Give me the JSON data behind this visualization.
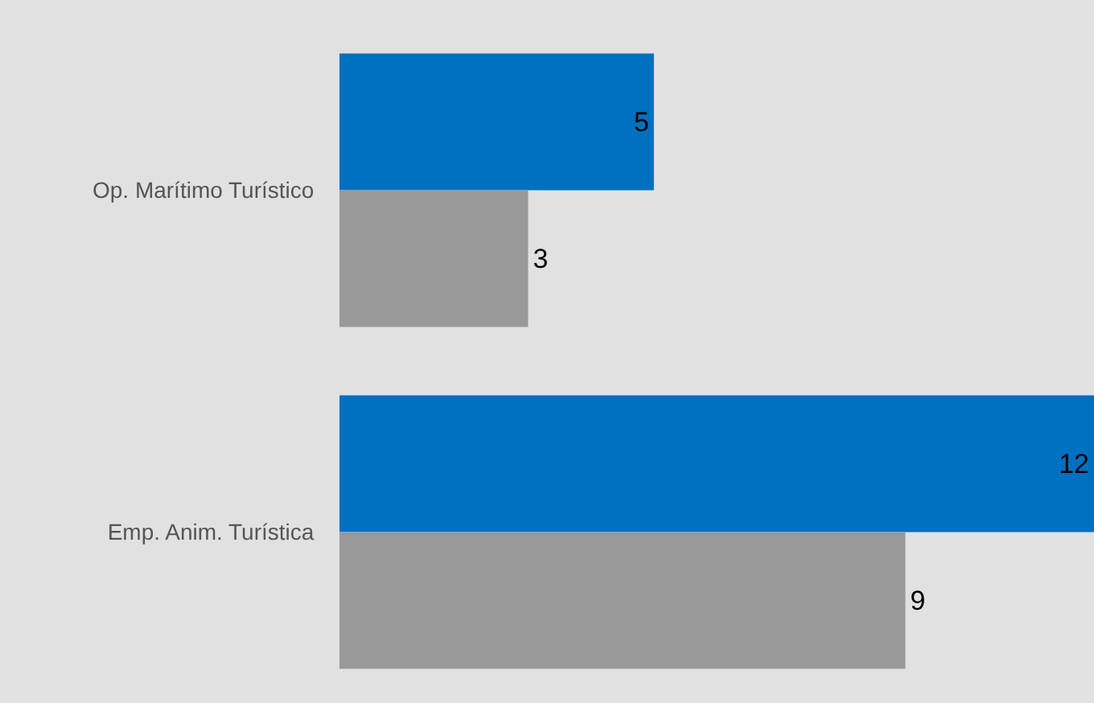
{
  "chart_data": {
    "type": "bar",
    "orientation": "horizontal",
    "categories": [
      "Op. Marítimo Turístico",
      "Emp. Anim. Turística"
    ],
    "series": [
      {
        "color": "#0070c0",
        "values": [
          5,
          12
        ]
      },
      {
        "color": "#999999",
        "values": [
          3,
          9
        ]
      }
    ],
    "xlim": [
      0,
      12
    ],
    "data_labels": true,
    "tick_labels": "y"
  }
}
